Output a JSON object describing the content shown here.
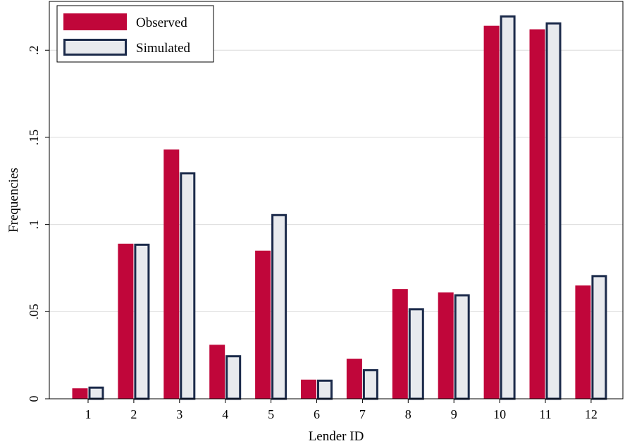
{
  "chart_data": {
    "type": "bar",
    "xlabel": "Lender ID",
    "ylabel": "Frequencies",
    "categories": [
      "1",
      "2",
      "3",
      "4",
      "5",
      "6",
      "7",
      "8",
      "9",
      "10",
      "11",
      "12"
    ],
    "series": [
      {
        "name": "Observed",
        "color": "#c0063a",
        "values": [
          0.006,
          0.089,
          0.143,
          0.031,
          0.085,
          0.011,
          0.023,
          0.063,
          0.061,
          0.214,
          0.212,
          0.065
        ]
      },
      {
        "name": "Simulated",
        "color": "#e8eaee",
        "stroke": "#1b2a4a",
        "values": [
          0.007,
          0.089,
          0.13,
          0.025,
          0.106,
          0.011,
          0.017,
          0.052,
          0.06,
          0.22,
          0.216,
          0.071
        ]
      }
    ],
    "ylim": [
      0,
      0.228
    ],
    "yticks": [
      0,
      0.05,
      0.1,
      0.15,
      0.2
    ],
    "ytick_labels": [
      "0",
      ".05",
      ".1",
      ".15",
      ".2"
    ],
    "grid": true,
    "legend_position": "top-left"
  }
}
